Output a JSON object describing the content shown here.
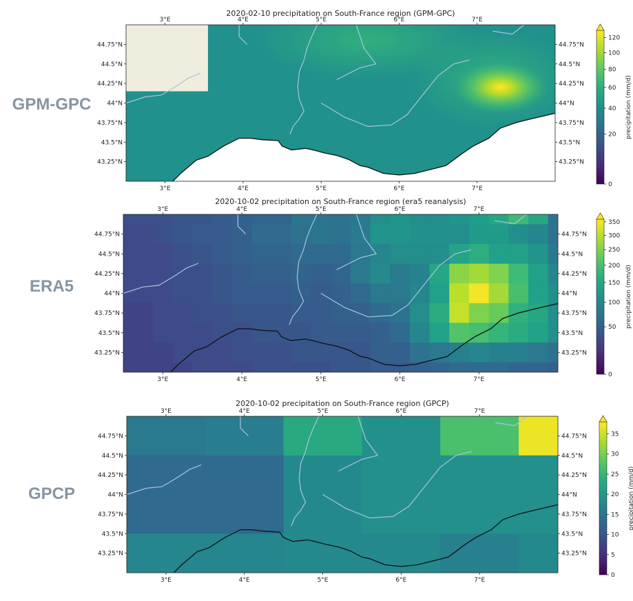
{
  "row_labels": [
    "GPM-GPC",
    "ERA5",
    "GPCP"
  ],
  "chart_data": [
    {
      "type": "heatmap",
      "title": "2020-02-10 precipitation on South-France region (GPM-GPC)",
      "x_ticks": [
        "3°E",
        "4°E",
        "5°E",
        "6°E",
        "7°E"
      ],
      "x_tick_values": [
        3,
        4,
        5,
        6,
        7
      ],
      "y_ticks": [
        "44.75°N",
        "44.5°N",
        "44.25°N",
        "44°N",
        "43.75°N",
        "43.5°N",
        "43.25°N"
      ],
      "y_tick_values": [
        44.75,
        44.5,
        44.25,
        44.0,
        43.75,
        43.5,
        43.25
      ],
      "xlim": [
        2.5,
        8.0
      ],
      "ylim": [
        43.0,
        45.0
      ],
      "colorbar": {
        "label": "precipitation (mm/d)",
        "ticks": [
          "120",
          "100",
          "80",
          "60",
          "40",
          "20",
          "0"
        ],
        "tick_values": [
          120,
          100,
          80,
          60,
          40,
          20,
          0
        ],
        "scale": "nonlinear",
        "max": 130,
        "extend": "max"
      },
      "colormap": "viridis",
      "cells_description": "fine-resolution field, mostly 15-25 mm/d; maximum ~110 mm/d near 7.3°E 44.2°N; no-data patch in northwest corner",
      "no_data_box": [
        2.5,
        3.55,
        44.15,
        45.0
      ]
    },
    {
      "type": "heatmap",
      "title": "2020-10-02 precipitation on South-France region (era5 reanalysis)",
      "x_ticks": [
        "3°E",
        "4°E",
        "5°E",
        "6°E",
        "7°E"
      ],
      "x_tick_values": [
        3,
        4,
        5,
        6,
        7
      ],
      "y_ticks": [
        "44.75°N",
        "44.5°N",
        "44.25°N",
        "44°N",
        "43.75°N",
        "43.5°N",
        "43.25°N"
      ],
      "y_tick_values": [
        44.75,
        44.5,
        44.25,
        44.0,
        43.75,
        43.5,
        43.25
      ],
      "xlim": [
        2.5,
        8.0
      ],
      "ylim": [
        43.0,
        45.0
      ],
      "colorbar": {
        "label": "precipitation (mm/d)",
        "ticks": [
          "350",
          "300",
          "250",
          "200",
          "150",
          "100",
          "50",
          "0"
        ],
        "tick_values": [
          350,
          300,
          250,
          200,
          150,
          100,
          50,
          0
        ],
        "scale": "nonlinear",
        "max": 360,
        "extend": "max"
      },
      "colormap": "viridis",
      "grid": {
        "x_edges": [
          2.5,
          2.875,
          3.125,
          3.375,
          3.625,
          3.875,
          4.125,
          4.375,
          4.625,
          4.875,
          5.125,
          5.375,
          5.625,
          5.875,
          6.125,
          6.375,
          6.625,
          6.875,
          7.125,
          7.375,
          7.625,
          7.875,
          8.0
        ],
        "y_edges": [
          45.0,
          44.875,
          44.625,
          44.375,
          44.125,
          43.875,
          43.625,
          43.375,
          43.125,
          43.0
        ],
        "values": [
          [
            35,
            35,
            40,
            40,
            45,
            50,
            55,
            55,
            75,
            75,
            70,
            80,
            110,
            120,
            110,
            110,
            120,
            135,
            150,
            190,
            150,
            70
          ],
          [
            30,
            35,
            40,
            45,
            45,
            50,
            60,
            60,
            70,
            75,
            70,
            85,
            120,
            120,
            115,
            115,
            110,
            130,
            130,
            110,
            100,
            70
          ],
          [
            30,
            30,
            35,
            40,
            45,
            50,
            55,
            55,
            60,
            60,
            60,
            80,
            100,
            110,
            110,
            110,
            145,
            165,
            140,
            140,
            120,
            80
          ],
          [
            30,
            30,
            35,
            35,
            40,
            45,
            50,
            50,
            55,
            50,
            55,
            80,
            105,
            85,
            95,
            150,
            260,
            280,
            250,
            190,
            140,
            100
          ],
          [
            30,
            30,
            35,
            35,
            40,
            45,
            45,
            45,
            50,
            45,
            50,
            60,
            80,
            80,
            100,
            140,
            300,
            350,
            280,
            200,
            140,
            110
          ],
          [
            25,
            30,
            30,
            35,
            35,
            40,
            40,
            40,
            45,
            45,
            50,
            50,
            60,
            70,
            110,
            160,
            310,
            250,
            230,
            170,
            150,
            110
          ],
          [
            25,
            30,
            30,
            30,
            35,
            35,
            40,
            40,
            40,
            45,
            45,
            45,
            50,
            60,
            100,
            140,
            210,
            200,
            180,
            160,
            140,
            110
          ],
          [
            25,
            25,
            30,
            30,
            30,
            35,
            35,
            35,
            40,
            40,
            40,
            40,
            50,
            50,
            70,
            80,
            90,
            100,
            90,
            90,
            80,
            70
          ],
          [
            25,
            25,
            25,
            30,
            30,
            30,
            35,
            35,
            35,
            35,
            40,
            40,
            45,
            45,
            50,
            55,
            60,
            60,
            60,
            55,
            55,
            50
          ]
        ]
      }
    },
    {
      "type": "heatmap",
      "title": "2020-10-02 precipitation on South-France region (GPCP)",
      "x_ticks": [
        "3°E",
        "4°E",
        "5°E",
        "6°E",
        "7°E"
      ],
      "x_tick_values": [
        3,
        4,
        5,
        6,
        7
      ],
      "y_ticks": [
        "44.75°N",
        "44.5°N",
        "44.25°N",
        "44°N",
        "43.75°N",
        "43.5°N",
        "43.25°N"
      ],
      "y_tick_values": [
        44.75,
        44.5,
        44.25,
        44.0,
        43.75,
        43.5,
        43.25
      ],
      "xlim": [
        2.5,
        8.0
      ],
      "ylim": [
        43.0,
        45.0
      ],
      "colorbar": {
        "label": "precipitation (mm/d)",
        "ticks": [
          "35",
          "30",
          "25",
          "20",
          "15",
          "10",
          "5",
          "0"
        ],
        "tick_values": [
          35,
          30,
          25,
          20,
          15,
          10,
          5,
          0
        ],
        "scale": "linear",
        "max": 38,
        "extend": "max"
      },
      "colormap": "viridis",
      "grid": {
        "x_edges": [
          2.5,
          3.5,
          4.5,
          5.5,
          6.5,
          7.5,
          8.0
        ],
        "y_edges": [
          45.0,
          44.5,
          43.5,
          43.0
        ],
        "values": [
          [
            15.5,
            16.0,
            23.0,
            19.0,
            27.0,
            37.0
          ],
          [
            13.0,
            13.0,
            18.0,
            19.0,
            19.0,
            19.0
          ],
          [
            17.5,
            17.5,
            18.0,
            18.0,
            16.5,
            18.0
          ]
        ]
      }
    }
  ]
}
